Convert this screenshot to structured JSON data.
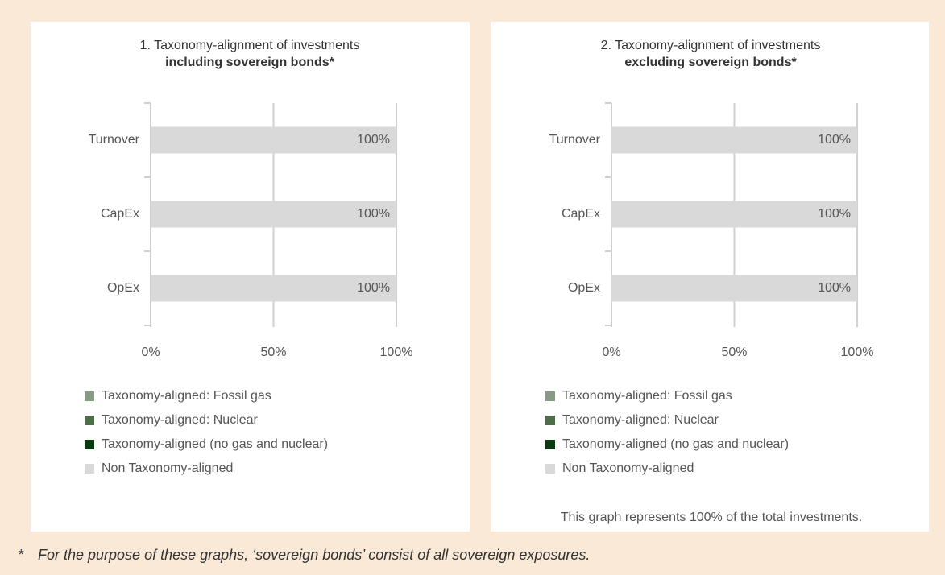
{
  "chart_data": [
    {
      "type": "bar",
      "orientation": "horizontal",
      "stacked": true,
      "title": "1. Taxonomy-alignment of investments",
      "subtitle": "including sovereign bonds*",
      "categories": [
        "Turnover",
        "CapEx",
        "OpEx"
      ],
      "series": [
        {
          "name": "Taxonomy-aligned: Fossil gas",
          "color": "#879a83",
          "values": [
            0,
            0,
            0
          ]
        },
        {
          "name": "Taxonomy-aligned: Nuclear",
          "color": "#4e6e4a",
          "values": [
            0,
            0,
            0
          ]
        },
        {
          "name": "Taxonomy-aligned (no gas and nuclear)",
          "color": "#0b3a10",
          "values": [
            0,
            0,
            0
          ]
        },
        {
          "name": "Non Taxonomy-aligned",
          "color": "#d9d9d9",
          "values": [
            100,
            100,
            100
          ],
          "value_labels": [
            "100%",
            "100%",
            "100%"
          ]
        }
      ],
      "xlim": [
        0,
        100
      ],
      "xticks": [
        {
          "value": 0,
          "label": "0%"
        },
        {
          "value": 50,
          "label": "50%"
        },
        {
          "value": 100,
          "label": "100%"
        }
      ],
      "grid": true
    },
    {
      "type": "bar",
      "orientation": "horizontal",
      "stacked": true,
      "title": "2. Taxonomy-alignment of investments",
      "subtitle": "excluding sovereign bonds*",
      "categories": [
        "Turnover",
        "CapEx",
        "OpEx"
      ],
      "series": [
        {
          "name": "Taxonomy-aligned: Fossil gas",
          "color": "#879a83",
          "values": [
            0,
            0,
            0
          ]
        },
        {
          "name": "Taxonomy-aligned: Nuclear",
          "color": "#4e6e4a",
          "values": [
            0,
            0,
            0
          ]
        },
        {
          "name": "Taxonomy-aligned (no gas and nuclear)",
          "color": "#0b3a10",
          "values": [
            0,
            0,
            0
          ]
        },
        {
          "name": "Non Taxonomy-aligned",
          "color": "#d9d9d9",
          "values": [
            100,
            100,
            100
          ],
          "value_labels": [
            "100%",
            "100%",
            "100%"
          ]
        }
      ],
      "xlim": [
        0,
        100
      ],
      "xticks": [
        {
          "value": 0,
          "label": "0%"
        },
        {
          "value": 50,
          "label": "50%"
        },
        {
          "value": 100,
          "label": "100%"
        }
      ],
      "grid": true,
      "note": "This graph represents 100% of the total investments."
    }
  ],
  "footnote": {
    "marker": "*",
    "text": "For the purpose of these graphs, ‘sovereign bonds’ consist of all sovereign exposures."
  }
}
